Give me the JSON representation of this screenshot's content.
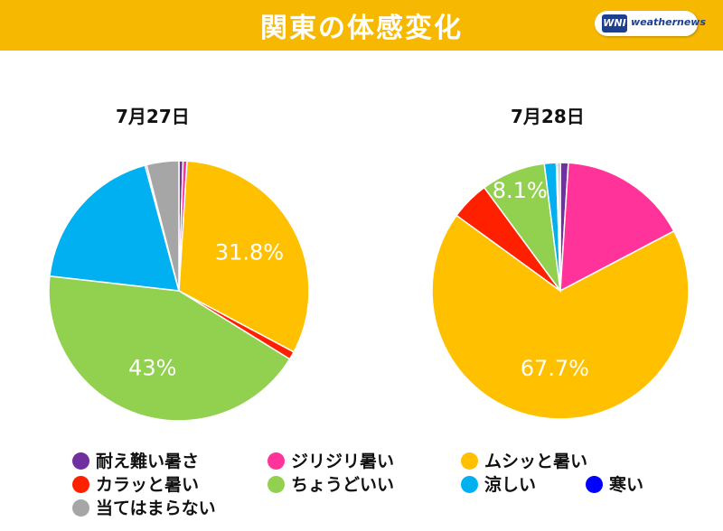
{
  "header": {
    "title": "関東の体感変化",
    "logo_mark": "WNI",
    "logo_text": "weathernews",
    "background": "#f6b800"
  },
  "chart_data": [
    {
      "type": "pie",
      "title": "7月27日",
      "slices": [
        {
          "name": "耐え難い暑さ",
          "value": 0.5,
          "color": "#7030a0",
          "label": ""
        },
        {
          "name": "ジリジリ暑い",
          "value": 0.5,
          "color": "#ff3399",
          "label": ""
        },
        {
          "name": "ムシッと暑い",
          "value": 31.8,
          "color": "#ffc000",
          "label": "31.8%"
        },
        {
          "name": "カラッと暑い",
          "value": 1.0,
          "color": "#ff2000",
          "label": ""
        },
        {
          "name": "ちょうどいい",
          "value": 43.0,
          "color": "#92d050",
          "label": "43%"
        },
        {
          "name": "涼しい",
          "value": 19.0,
          "color": "#00b0f0",
          "label": ""
        },
        {
          "name": "寒い",
          "value": 0.2,
          "color": "#0000ff",
          "label": ""
        },
        {
          "name": "当てはまらない",
          "value": 4.0,
          "color": "#a6a6a6",
          "label": ""
        }
      ]
    },
    {
      "type": "pie",
      "title": "7月28日",
      "slices": [
        {
          "name": "耐え難い暑さ",
          "value": 1.0,
          "color": "#7030a0",
          "label": ""
        },
        {
          "name": "ジリジリ暑い",
          "value": 16.3,
          "color": "#ff3399",
          "label": ""
        },
        {
          "name": "ムシッと暑い",
          "value": 67.7,
          "color": "#ffc000",
          "label": "67.7%"
        },
        {
          "name": "カラッと暑い",
          "value": 4.9,
          "color": "#ff2000",
          "label": ""
        },
        {
          "name": "ちょうどいい",
          "value": 8.1,
          "color": "#92d050",
          "label": "8.1%"
        },
        {
          "name": "涼しい",
          "value": 1.5,
          "color": "#00b0f0",
          "label": ""
        },
        {
          "name": "寒い",
          "value": 0.2,
          "color": "#0000ff",
          "label": ""
        },
        {
          "name": "当てはまらない",
          "value": 0.3,
          "color": "#a6a6a6",
          "label": ""
        }
      ]
    }
  ],
  "legend": [
    {
      "label": "耐え難い暑さ",
      "color": "#7030a0"
    },
    {
      "label": "ジリジリ暑い",
      "color": "#ff3399"
    },
    {
      "label": "ムシッと暑い",
      "color": "#ffc000"
    },
    {
      "label": "カラッと暑い",
      "color": "#ff2000"
    },
    {
      "label": "ちょうどいい",
      "color": "#92d050"
    },
    {
      "label": "涼しい",
      "color": "#00b0f0"
    },
    {
      "label": "寒い",
      "color": "#0000ff"
    },
    {
      "label": "当てはまらない",
      "color": "#a6a6a6"
    }
  ]
}
